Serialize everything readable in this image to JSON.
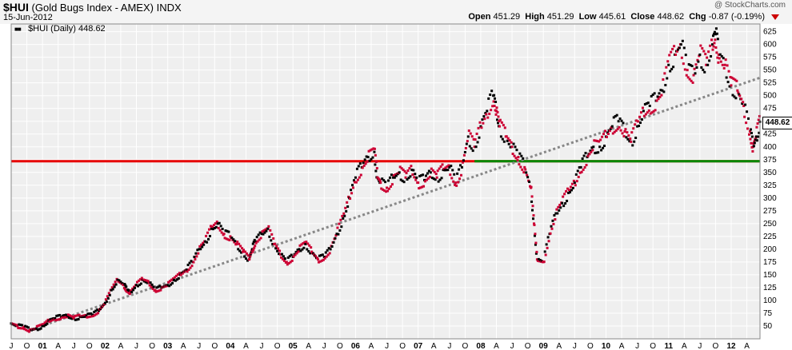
{
  "header": {
    "symbol": "$HUI",
    "name": "(Gold Bugs Index - AMEX)",
    "exchange": "INDX",
    "date": "15-Jun-2012",
    "copyright": "@ StockCharts.com",
    "open_label": "Open",
    "open": "451.29",
    "high_label": "High",
    "high": "451.29",
    "low_label": "Low",
    "low": "445.61",
    "close_label": "Close",
    "close": "448.62",
    "chg_label": "Chg",
    "chg": "-0.87 (-0.19%)",
    "chg_icon": "down-arrow-icon"
  },
  "legend": {
    "label": "$HUI (Daily)",
    "value": "448.62"
  },
  "last_price": "448.62",
  "colors": {
    "plot_bg": "#efefef",
    "grid": "#ffffff",
    "up_marker": "#000000",
    "down_marker": "#cc0033",
    "resistance": "#e60000",
    "support": "#008800",
    "trendline": "#888888",
    "header_bg": "#f4f4f4"
  },
  "chart_data": {
    "type": "scatter",
    "title": "$HUI (Gold Bugs Index - AMEX) INDX",
    "ylim": [
      25,
      640
    ],
    "y_ticks": [
      50,
      75,
      100,
      125,
      150,
      175,
      200,
      225,
      250,
      275,
      300,
      325,
      350,
      375,
      400,
      425,
      450,
      475,
      500,
      525,
      550,
      575,
      600,
      625
    ],
    "x_range": [
      2000.5,
      2012.46
    ],
    "x_ticks": [
      {
        "label": "J",
        "x": 2000.5
      },
      {
        "label": "O",
        "x": 2000.75
      },
      {
        "label": "01",
        "x": 2001.0
      },
      {
        "label": "A",
        "x": 2001.25
      },
      {
        "label": "J",
        "x": 2001.5
      },
      {
        "label": "O",
        "x": 2001.75
      },
      {
        "label": "02",
        "x": 2002.0
      },
      {
        "label": "A",
        "x": 2002.25
      },
      {
        "label": "J",
        "x": 2002.5
      },
      {
        "label": "O",
        "x": 2002.75
      },
      {
        "label": "03",
        "x": 2003.0
      },
      {
        "label": "A",
        "x": 2003.25
      },
      {
        "label": "J",
        "x": 2003.5
      },
      {
        "label": "O",
        "x": 2003.75
      },
      {
        "label": "04",
        "x": 2004.0
      },
      {
        "label": "A",
        "x": 2004.25
      },
      {
        "label": "J",
        "x": 2004.5
      },
      {
        "label": "O",
        "x": 2004.75
      },
      {
        "label": "05",
        "x": 2005.0
      },
      {
        "label": "A",
        "x": 2005.25
      },
      {
        "label": "J",
        "x": 2005.5
      },
      {
        "label": "O",
        "x": 2005.75
      },
      {
        "label": "06",
        "x": 2006.0
      },
      {
        "label": "A",
        "x": 2006.25
      },
      {
        "label": "J",
        "x": 2006.5
      },
      {
        "label": "O",
        "x": 2006.75
      },
      {
        "label": "07",
        "x": 2007.0
      },
      {
        "label": "A",
        "x": 2007.25
      },
      {
        "label": "J",
        "x": 2007.5
      },
      {
        "label": "O",
        "x": 2007.75
      },
      {
        "label": "08",
        "x": 2008.0
      },
      {
        "label": "A",
        "x": 2008.25
      },
      {
        "label": "J",
        "x": 2008.5
      },
      {
        "label": "O",
        "x": 2008.75
      },
      {
        "label": "09",
        "x": 2009.0
      },
      {
        "label": "A",
        "x": 2009.25
      },
      {
        "label": "J",
        "x": 2009.5
      },
      {
        "label": "O",
        "x": 2009.75
      },
      {
        "label": "10",
        "x": 2010.0
      },
      {
        "label": "A",
        "x": 2010.25
      },
      {
        "label": "J",
        "x": 2010.5
      },
      {
        "label": "O",
        "x": 2010.75
      },
      {
        "label": "11",
        "x": 2011.0
      },
      {
        "label": "A",
        "x": 2011.25
      },
      {
        "label": "J",
        "x": 2011.5
      },
      {
        "label": "O",
        "x": 2011.75
      },
      {
        "label": "12",
        "x": 2012.0
      },
      {
        "label": "A",
        "x": 2012.25
      }
    ],
    "lines": [
      {
        "kind": "resistance",
        "level": 372,
        "color": "#e60000"
      },
      {
        "kind": "support",
        "level": 372,
        "x_start": 2007.9,
        "color": "#008800"
      },
      {
        "kind": "trendline",
        "points": [
          [
            2000.75,
            40
          ],
          [
            2012.46,
            535
          ]
        ],
        "color": "#888888",
        "style": "dotted"
      }
    ],
    "series": [
      {
        "values_x": [
          2000.5,
          2000.6,
          2000.7,
          2000.8,
          2000.9,
          2001.0,
          2001.1,
          2001.2,
          2001.3,
          2001.4,
          2001.5,
          2001.6,
          2001.7,
          2001.8,
          2001.9,
          2002.0,
          2002.1,
          2002.2,
          2002.3,
          2002.35,
          2002.4,
          2002.5,
          2002.6,
          2002.7,
          2002.8,
          2002.9,
          2003.0,
          2003.1,
          2003.2,
          2003.3,
          2003.4,
          2003.5,
          2003.6,
          2003.7,
          2003.8,
          2003.9,
          2004.0,
          2004.1,
          2004.2,
          2004.3,
          2004.35,
          2004.4,
          2004.5,
          2004.6,
          2004.7,
          2004.8,
          2004.9,
          2005.0,
          2005.1,
          2005.2,
          2005.3,
          2005.4,
          2005.5,
          2005.6,
          2005.7,
          2005.8,
          2005.9,
          2006.0,
          2006.1,
          2006.2,
          2006.3,
          2006.35,
          2006.4,
          2006.5,
          2006.6,
          2006.7,
          2006.8,
          2006.9,
          2007.0,
          2007.1,
          2007.2,
          2007.3,
          2007.4,
          2007.5,
          2007.6,
          2007.7,
          2007.8,
          2007.9,
          2008.0,
          2008.1,
          2008.2,
          2008.25,
          2008.3,
          2008.4,
          2008.5,
          2008.6,
          2008.7,
          2008.8,
          2008.85,
          2008.9,
          2009.0,
          2009.1,
          2009.2,
          2009.3,
          2009.4,
          2009.5,
          2009.6,
          2009.7,
          2009.8,
          2009.9,
          2010.0,
          2010.1,
          2010.2,
          2010.3,
          2010.4,
          2010.5,
          2010.6,
          2010.7,
          2010.8,
          2010.9,
          2011.0,
          2011.1,
          2011.2,
          2011.3,
          2011.4,
          2011.5,
          2011.6,
          2011.7,
          2011.75,
          2011.8,
          2011.9,
          2012.0,
          2012.1,
          2012.2,
          2012.3,
          2012.35,
          2012.4,
          2012.46
        ],
        "values_y": [
          55,
          50,
          48,
          42,
          45,
          50,
          60,
          65,
          68,
          70,
          65,
          68,
          70,
          72,
          80,
          95,
          120,
          140,
          130,
          120,
          115,
          130,
          140,
          135,
          120,
          125,
          130,
          140,
          150,
          160,
          175,
          200,
          215,
          240,
          250,
          230,
          225,
          210,
          195,
          180,
          200,
          215,
          230,
          240,
          210,
          190,
          175,
          185,
          200,
          210,
          195,
          180,
          185,
          200,
          230,
          260,
          300,
          340,
          360,
          380,
          390,
          340,
          330,
          320,
          340,
          350,
          340,
          355,
          330,
          335,
          350,
          340,
          355,
          360,
          330,
          360,
          420,
          400,
          440,
          470,
          500,
          470,
          440,
          420,
          400,
          380,
          360,
          320,
          250,
          180,
          175,
          230,
          270,
          290,
          310,
          330,
          360,
          380,
          400,
          400,
          420,
          440,
          450,
          430,
          410,
          440,
          470,
          480,
          490,
          510,
          560,
          580,
          600,
          550,
          540,
          580,
          560,
          600,
          620,
          580,
          560,
          520,
          510,
          480,
          430,
          400,
          420,
          449
        ],
        "name": ""
      }
    ]
  }
}
